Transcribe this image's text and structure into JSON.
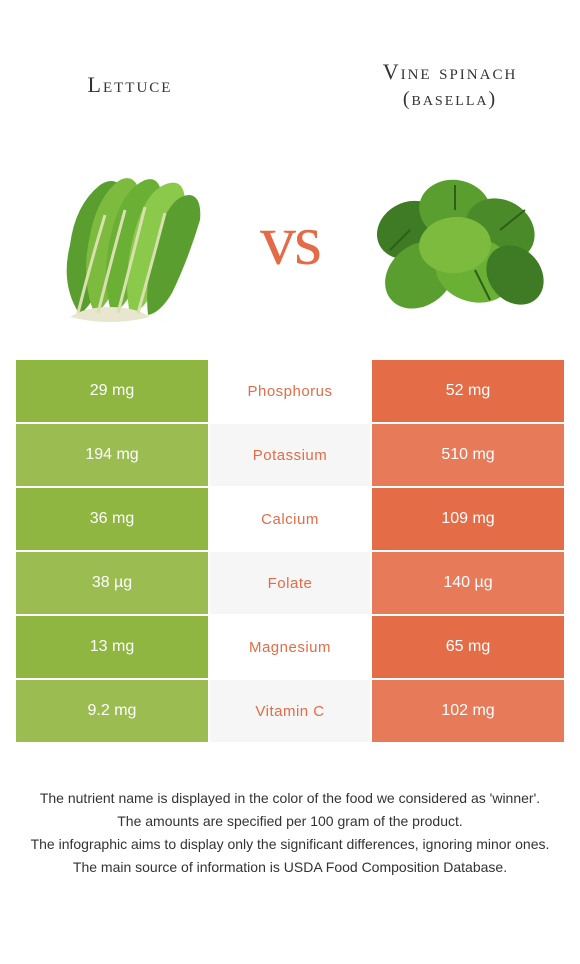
{
  "left_food": {
    "title": "Lettuce",
    "color": "#8eb53f"
  },
  "right_food": {
    "title_line1": "Vine spinach",
    "title_line2": "(basella)",
    "color": "#e46c47"
  },
  "vs_label": "vs",
  "vs_color": "#e36b48",
  "nutrients": [
    {
      "name": "Phosphorus",
      "left": "29 mg",
      "right": "52 mg",
      "winner": "right"
    },
    {
      "name": "Potassium",
      "left": "194 mg",
      "right": "510 mg",
      "winner": "right"
    },
    {
      "name": "Calcium",
      "left": "36 mg",
      "right": "109 mg",
      "winner": "right"
    },
    {
      "name": "Folate",
      "left": "38 µg",
      "right": "140 µg",
      "winner": "right"
    },
    {
      "name": "Magnesium",
      "left": "13 mg",
      "right": "65 mg",
      "winner": "right"
    },
    {
      "name": "Vitamin C",
      "left": "9.2 mg",
      "right": "102 mg",
      "winner": "right"
    }
  ],
  "row_alt_colors": {
    "left_a": "#8fb640",
    "left_b": "#9abc51",
    "right_a": "#e46c47",
    "right_b": "#e67a59",
    "mid_a": "#ffffff",
    "mid_b": "#f6f6f6"
  },
  "notes": [
    "The nutrient name is displayed in the color of the food we considered as 'winner'.",
    "The amounts are specified per 100 gram of the product.",
    "The infographic aims to display only the significant differences, ignoring minor ones.",
    "The main source of information is USDA Food Composition Database."
  ]
}
